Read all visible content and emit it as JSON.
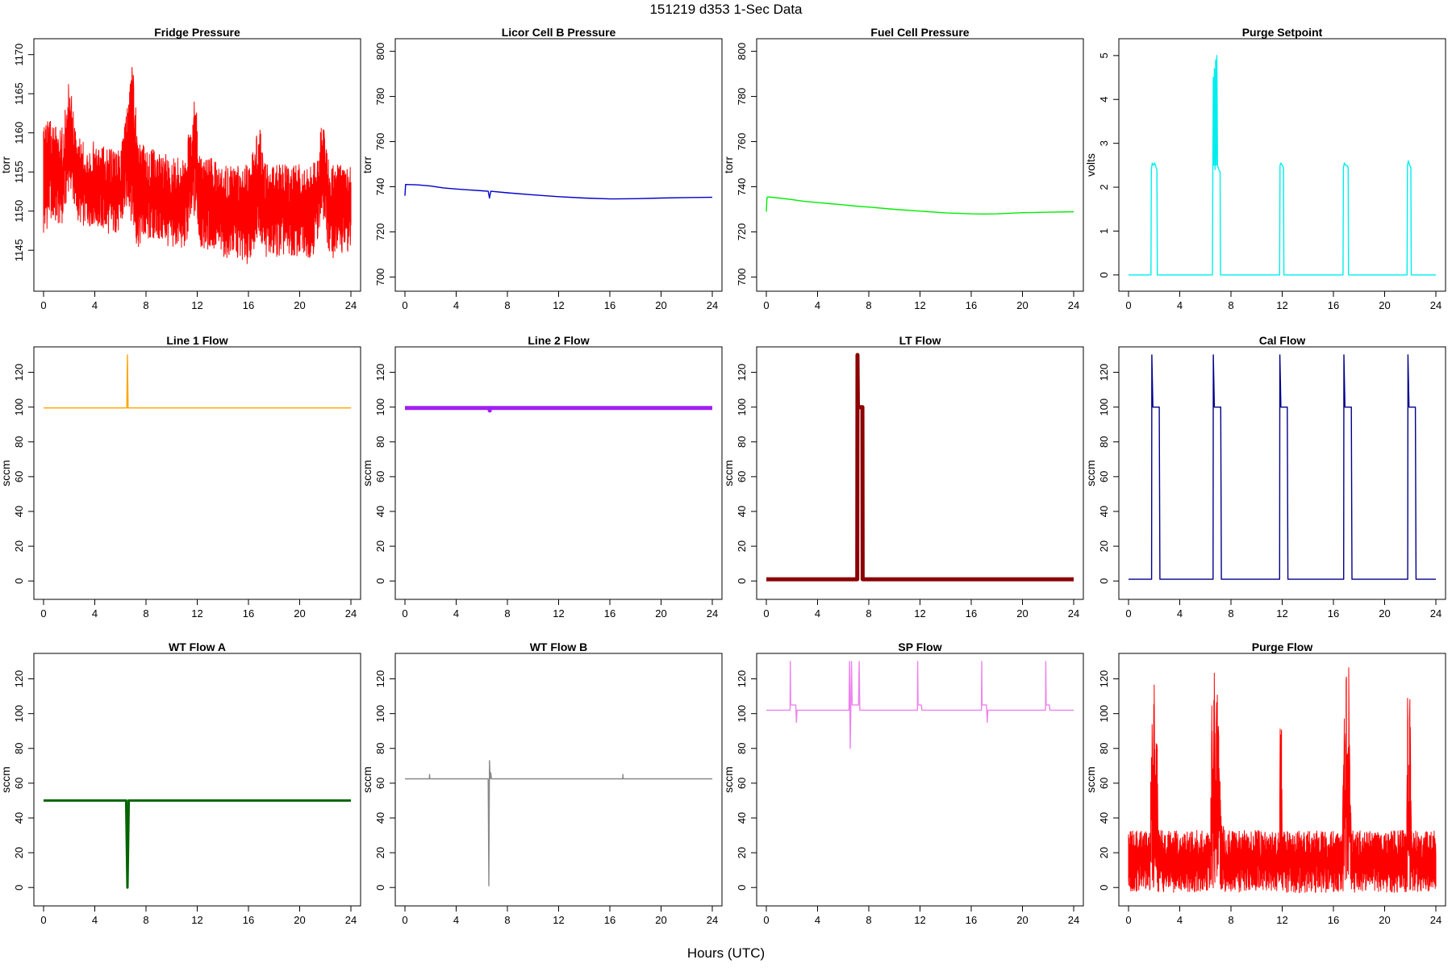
{
  "figure": {
    "title": "151219   d353   1-Sec Data",
    "xlabel": "Hours (UTC)"
  },
  "chart_data": [
    {
      "type": "line",
      "title": "Fridge Pressure",
      "ylabel": "torr",
      "color": "#ff0000",
      "xlim": [
        0,
        24
      ],
      "ylim": [
        1141,
        1171
      ],
      "xticks": [
        0,
        4,
        8,
        12,
        16,
        20,
        24
      ],
      "yticks": [
        1145,
        1150,
        1155,
        1160,
        1165,
        1170
      ],
      "series": [
        {
          "x": [
            0,
            0.5,
            1,
            1.5,
            2,
            2.2,
            2.5,
            3,
            4,
            5,
            6,
            6.6,
            7,
            7.3,
            8,
            9,
            10,
            11,
            11.8,
            12,
            12.2,
            13,
            14,
            15,
            16,
            16.8,
            17,
            17.3,
            18,
            19,
            20,
            21,
            21.8,
            22,
            22.3,
            23,
            24
          ],
          "y_min": [
            1146,
            1149,
            1148,
            1148,
            1153,
            1152,
            1149,
            1148,
            1148,
            1147,
            1147,
            1151,
            1147,
            1145,
            1146,
            1146,
            1145,
            1145,
            1149,
            1148,
            1145,
            1145,
            1144,
            1144,
            1143,
            1147,
            1146,
            1144,
            1144,
            1144,
            1144,
            1144,
            1149,
            1148,
            1144,
            1144,
            1145
          ],
          "y_max": [
            1161,
            1162,
            1161,
            1161,
            1167,
            1165,
            1160,
            1159,
            1159,
            1158,
            1158,
            1164,
            1170,
            1160,
            1158,
            1158,
            1157,
            1157,
            1165,
            1163,
            1157,
            1157,
            1156,
            1156,
            1156,
            1161,
            1160,
            1156,
            1156,
            1156,
            1156,
            1156,
            1162,
            1161,
            1156,
            1156,
            1156
          ]
        }
      ]
    },
    {
      "type": "line",
      "title": "Licor Cell B Pressure",
      "ylabel": "torr",
      "color": "#0000cd",
      "xlim": [
        0,
        24
      ],
      "ylim": [
        698,
        802
      ],
      "xticks": [
        0,
        4,
        8,
        12,
        16,
        20,
        24
      ],
      "yticks": [
        700,
        720,
        740,
        760,
        780,
        800
      ],
      "series": [
        {
          "x": [
            0,
            0.05,
            0.1,
            1,
            2,
            3,
            4,
            5,
            6,
            6.5,
            6.6,
            6.7,
            8,
            10,
            12,
            14,
            16,
            18,
            20,
            22,
            24
          ],
          "y": [
            736,
            741,
            741,
            740.8,
            740.3,
            739.5,
            739,
            738.6,
            738.2,
            738,
            735,
            738,
            737.3,
            736.4,
            735.6,
            735,
            734.6,
            734.7,
            735,
            735.2,
            735.3
          ]
        }
      ]
    },
    {
      "type": "line",
      "title": "Fuel Cell Pressure",
      "ylabel": "torr",
      "color": "#00ee00",
      "xlim": [
        0,
        24
      ],
      "ylim": [
        698,
        802
      ],
      "xticks": [
        0,
        4,
        8,
        12,
        16,
        20,
        24
      ],
      "yticks": [
        700,
        720,
        740,
        760,
        780,
        800
      ],
      "series": [
        {
          "x": [
            0,
            0.05,
            0.1,
            1,
            2,
            3,
            4,
            5,
            6,
            7,
            8,
            10,
            12,
            14,
            16,
            17,
            18,
            20,
            22,
            24
          ],
          "y": [
            729,
            735,
            735.5,
            735,
            734.3,
            733.5,
            733,
            732.5,
            732,
            731.4,
            731,
            730,
            729.2,
            728.4,
            728,
            727.9,
            728,
            728.5,
            728.7,
            728.9
          ]
        }
      ]
    },
    {
      "type": "line",
      "title": "Purge Setpoint",
      "ylabel": "volts",
      "color": "#00eeee",
      "xlim": [
        0,
        24
      ],
      "ylim": [
        -0.15,
        5.2
      ],
      "xticks": [
        0,
        4,
        8,
        12,
        16,
        20,
        24
      ],
      "yticks": [
        0,
        1,
        2,
        3,
        4,
        5
      ],
      "series": [
        {
          "x": [
            0,
            1.75,
            1.78,
            1.85,
            1.95,
            2.05,
            2.15,
            2.22,
            2.25,
            6.55,
            6.58,
            6.62,
            6.66,
            6.7,
            6.75,
            6.8,
            6.85,
            6.9,
            6.95,
            7.05,
            7.15,
            7.18,
            11.8,
            11.83,
            11.9,
            12,
            12.1,
            12.13,
            16.75,
            16.78,
            16.85,
            16.95,
            17.05,
            17.15,
            17.18,
            21.75,
            21.78,
            21.85,
            21.95,
            22.05,
            22.08,
            24
          ],
          "y": [
            0,
            0,
            2.4,
            2.55,
            2.5,
            2.55,
            2.45,
            2.4,
            0,
            0,
            2.3,
            4.5,
            2.5,
            4.7,
            2.4,
            4.9,
            2.5,
            5.0,
            2.5,
            2.4,
            2.35,
            0,
            0,
            2.5,
            2.55,
            2.5,
            2.45,
            0,
            0,
            2.45,
            2.55,
            2.5,
            2.5,
            2.45,
            0,
            0,
            2.5,
            2.6,
            2.5,
            2.45,
            0,
            0
          ]
        }
      ]
    },
    {
      "type": "line",
      "title": "Line 1 Flow",
      "ylabel": "sccm",
      "color": "#ffa500",
      "xlim": [
        0,
        24
      ],
      "ylim": [
        -5,
        130
      ],
      "xticks": [
        0,
        4,
        8,
        12,
        16,
        20,
        24
      ],
      "yticks": [
        0,
        20,
        40,
        60,
        80,
        100,
        120
      ],
      "series": [
        {
          "x": [
            0,
            6.5,
            6.55,
            6.6,
            24
          ],
          "y": [
            99.5,
            99.5,
            130,
            99.5,
            99.5
          ]
        }
      ]
    },
    {
      "type": "line",
      "title": "Line 2 Flow",
      "ylabel": "sccm",
      "color": "#a020f0",
      "xlim": [
        0,
        24
      ],
      "ylim": [
        -5,
        130
      ],
      "xticks": [
        0,
        4,
        8,
        12,
        16,
        20,
        24
      ],
      "yticks": [
        0,
        20,
        40,
        60,
        80,
        100,
        120
      ],
      "series": [
        {
          "x": [
            0,
            6.6,
            6.62,
            6.64,
            24
          ],
          "y": [
            99.5,
            99.5,
            98,
            99.5,
            99.5
          ]
        }
      ]
    },
    {
      "type": "line",
      "title": "LT Flow",
      "ylabel": "sccm",
      "color": "#8b0000",
      "xlim": [
        0,
        24
      ],
      "ylim": [
        -5,
        130
      ],
      "xticks": [
        0,
        4,
        8,
        12,
        16,
        20,
        24
      ],
      "yticks": [
        0,
        20,
        40,
        60,
        80,
        100,
        120
      ],
      "series": [
        {
          "x": [
            0,
            7.1,
            7.12,
            7.15,
            7.5,
            7.52,
            24
          ],
          "y": [
            1,
            1,
            130,
            100,
            100,
            1,
            1
          ]
        }
      ]
    },
    {
      "type": "line",
      "title": "Cal Flow",
      "ylabel": "sccm",
      "color": "#00008b",
      "xlim": [
        0,
        24
      ],
      "ylim": [
        -5,
        130
      ],
      "xticks": [
        0,
        4,
        8,
        12,
        16,
        20,
        24
      ],
      "yticks": [
        0,
        20,
        40,
        60,
        80,
        100,
        120
      ],
      "series": [
        {
          "x": [
            0,
            1.8,
            1.82,
            1.9,
            2.4,
            2.45,
            6.6,
            6.62,
            6.7,
            7.2,
            7.25,
            11.8,
            11.82,
            11.9,
            12.4,
            12.45,
            16.8,
            16.82,
            16.9,
            17.4,
            17.45,
            21.8,
            21.82,
            21.9,
            22.4,
            22.45,
            24
          ],
          "y": [
            1,
            1,
            130,
            100,
            100,
            1,
            1,
            130,
            100,
            100,
            1,
            1,
            130,
            100,
            100,
            1,
            1,
            130,
            100,
            100,
            1,
            1,
            130,
            100,
            100,
            1,
            1
          ]
        }
      ]
    },
    {
      "type": "line",
      "title": "WT Flow A",
      "ylabel": "sccm",
      "color": "#006400",
      "xlim": [
        0,
        24
      ],
      "ylim": [
        -5,
        130
      ],
      "xticks": [
        0,
        4,
        8,
        12,
        16,
        20,
        24
      ],
      "yticks": [
        0,
        20,
        40,
        60,
        80,
        100,
        120
      ],
      "series": [
        {
          "x": [
            0,
            6.45,
            6.55,
            6.65,
            24
          ],
          "y": [
            50,
            50,
            0,
            50,
            50
          ]
        }
      ]
    },
    {
      "type": "line",
      "title": "WT Flow B",
      "ylabel": "sccm",
      "color": "#888888",
      "xlim": [
        0,
        24
      ],
      "ylim": [
        -5,
        130
      ],
      "xticks": [
        0,
        4,
        8,
        12,
        16,
        20,
        24
      ],
      "yticks": [
        0,
        20,
        40,
        60,
        80,
        100,
        120
      ],
      "series": [
        {
          "x": [
            0,
            1.9,
            1.92,
            1.94,
            6.5,
            6.55,
            6.6,
            6.65,
            6.7,
            6.75,
            6.8,
            12,
            17,
            17.02,
            17.04,
            24
          ],
          "y": [
            62.5,
            62.5,
            65,
            62.5,
            62.5,
            1,
            73,
            62.5,
            66,
            62.5,
            62.5,
            62.5,
            62.5,
            65,
            62.5,
            62.5
          ]
        }
      ]
    },
    {
      "type": "line",
      "title": "SP Flow",
      "ylabel": "sccm",
      "color": "#ee82ee",
      "xlim": [
        0,
        24
      ],
      "ylim": [
        -5,
        130
      ],
      "xticks": [
        0,
        4,
        8,
        12,
        16,
        20,
        24
      ],
      "yticks": [
        0,
        20,
        40,
        60,
        80,
        100,
        120
      ],
      "series": [
        {
          "x": [
            0,
            1.85,
            1.87,
            1.9,
            2.3,
            2.35,
            2.4,
            6.45,
            6.5,
            6.55,
            6.6,
            6.65,
            6.7,
            7.2,
            7.25,
            7.3,
            11.8,
            11.82,
            11.85,
            12.1,
            12.15,
            16.8,
            16.82,
            16.85,
            17.2,
            17.25,
            17.3,
            21.8,
            21.82,
            21.85,
            22.1,
            22.15,
            24
          ],
          "y": [
            102,
            102,
            130,
            105,
            105,
            95,
            102,
            102,
            130,
            80,
            105,
            130,
            105,
            105,
            130,
            102,
            102,
            130,
            105,
            105,
            102,
            102,
            130,
            105,
            105,
            95,
            102,
            102,
            130,
            105,
            105,
            102,
            102
          ]
        }
      ]
    },
    {
      "type": "line",
      "title": "Purge Flow",
      "ylabel": "sccm",
      "color": "#ff0000",
      "xlim": [
        0,
        24
      ],
      "ylim": [
        -5,
        130
      ],
      "xticks": [
        0,
        4,
        8,
        12,
        16,
        20,
        24
      ],
      "yticks": [
        0,
        20,
        40,
        60,
        80,
        100,
        120
      ],
      "series": [
        {
          "x": [
            0,
            1.7,
            1.8,
            1.9,
            2.0,
            2.1,
            2.2,
            2.3,
            2.5,
            6.4,
            6.5,
            6.6,
            6.7,
            6.8,
            6.9,
            7.0,
            7.2,
            7.5,
            11.8,
            11.85,
            11.9,
            11.95,
            12.0,
            12.2,
            16.7,
            16.8,
            16.9,
            17.0,
            17.1,
            17.2,
            17.4,
            21.7,
            21.8,
            21.9,
            22.0,
            22.1,
            22.3,
            24
          ],
          "y_min": [
            -3,
            -3,
            -3,
            -3,
            -3,
            -3,
            -3,
            -3,
            -3,
            -3,
            -3,
            -3,
            -3,
            -3,
            -3,
            -3,
            -3,
            -3,
            -3,
            -3,
            -3,
            -3,
            -3,
            -3,
            -3,
            -3,
            -3,
            -3,
            -3,
            -3,
            -3,
            -3,
            -3,
            -3,
            -3,
            -3,
            -3,
            -3
          ],
          "y_max": [
            33,
            33,
            130,
            70,
            130,
            70,
            130,
            33,
            33,
            33,
            130,
            70,
            130,
            70,
            130,
            130,
            44,
            33,
            33,
            130,
            70,
            130,
            33,
            33,
            33,
            130,
            70,
            130,
            70,
            130,
            33,
            33,
            130,
            70,
            130,
            33,
            33,
            33
          ]
        }
      ]
    }
  ]
}
